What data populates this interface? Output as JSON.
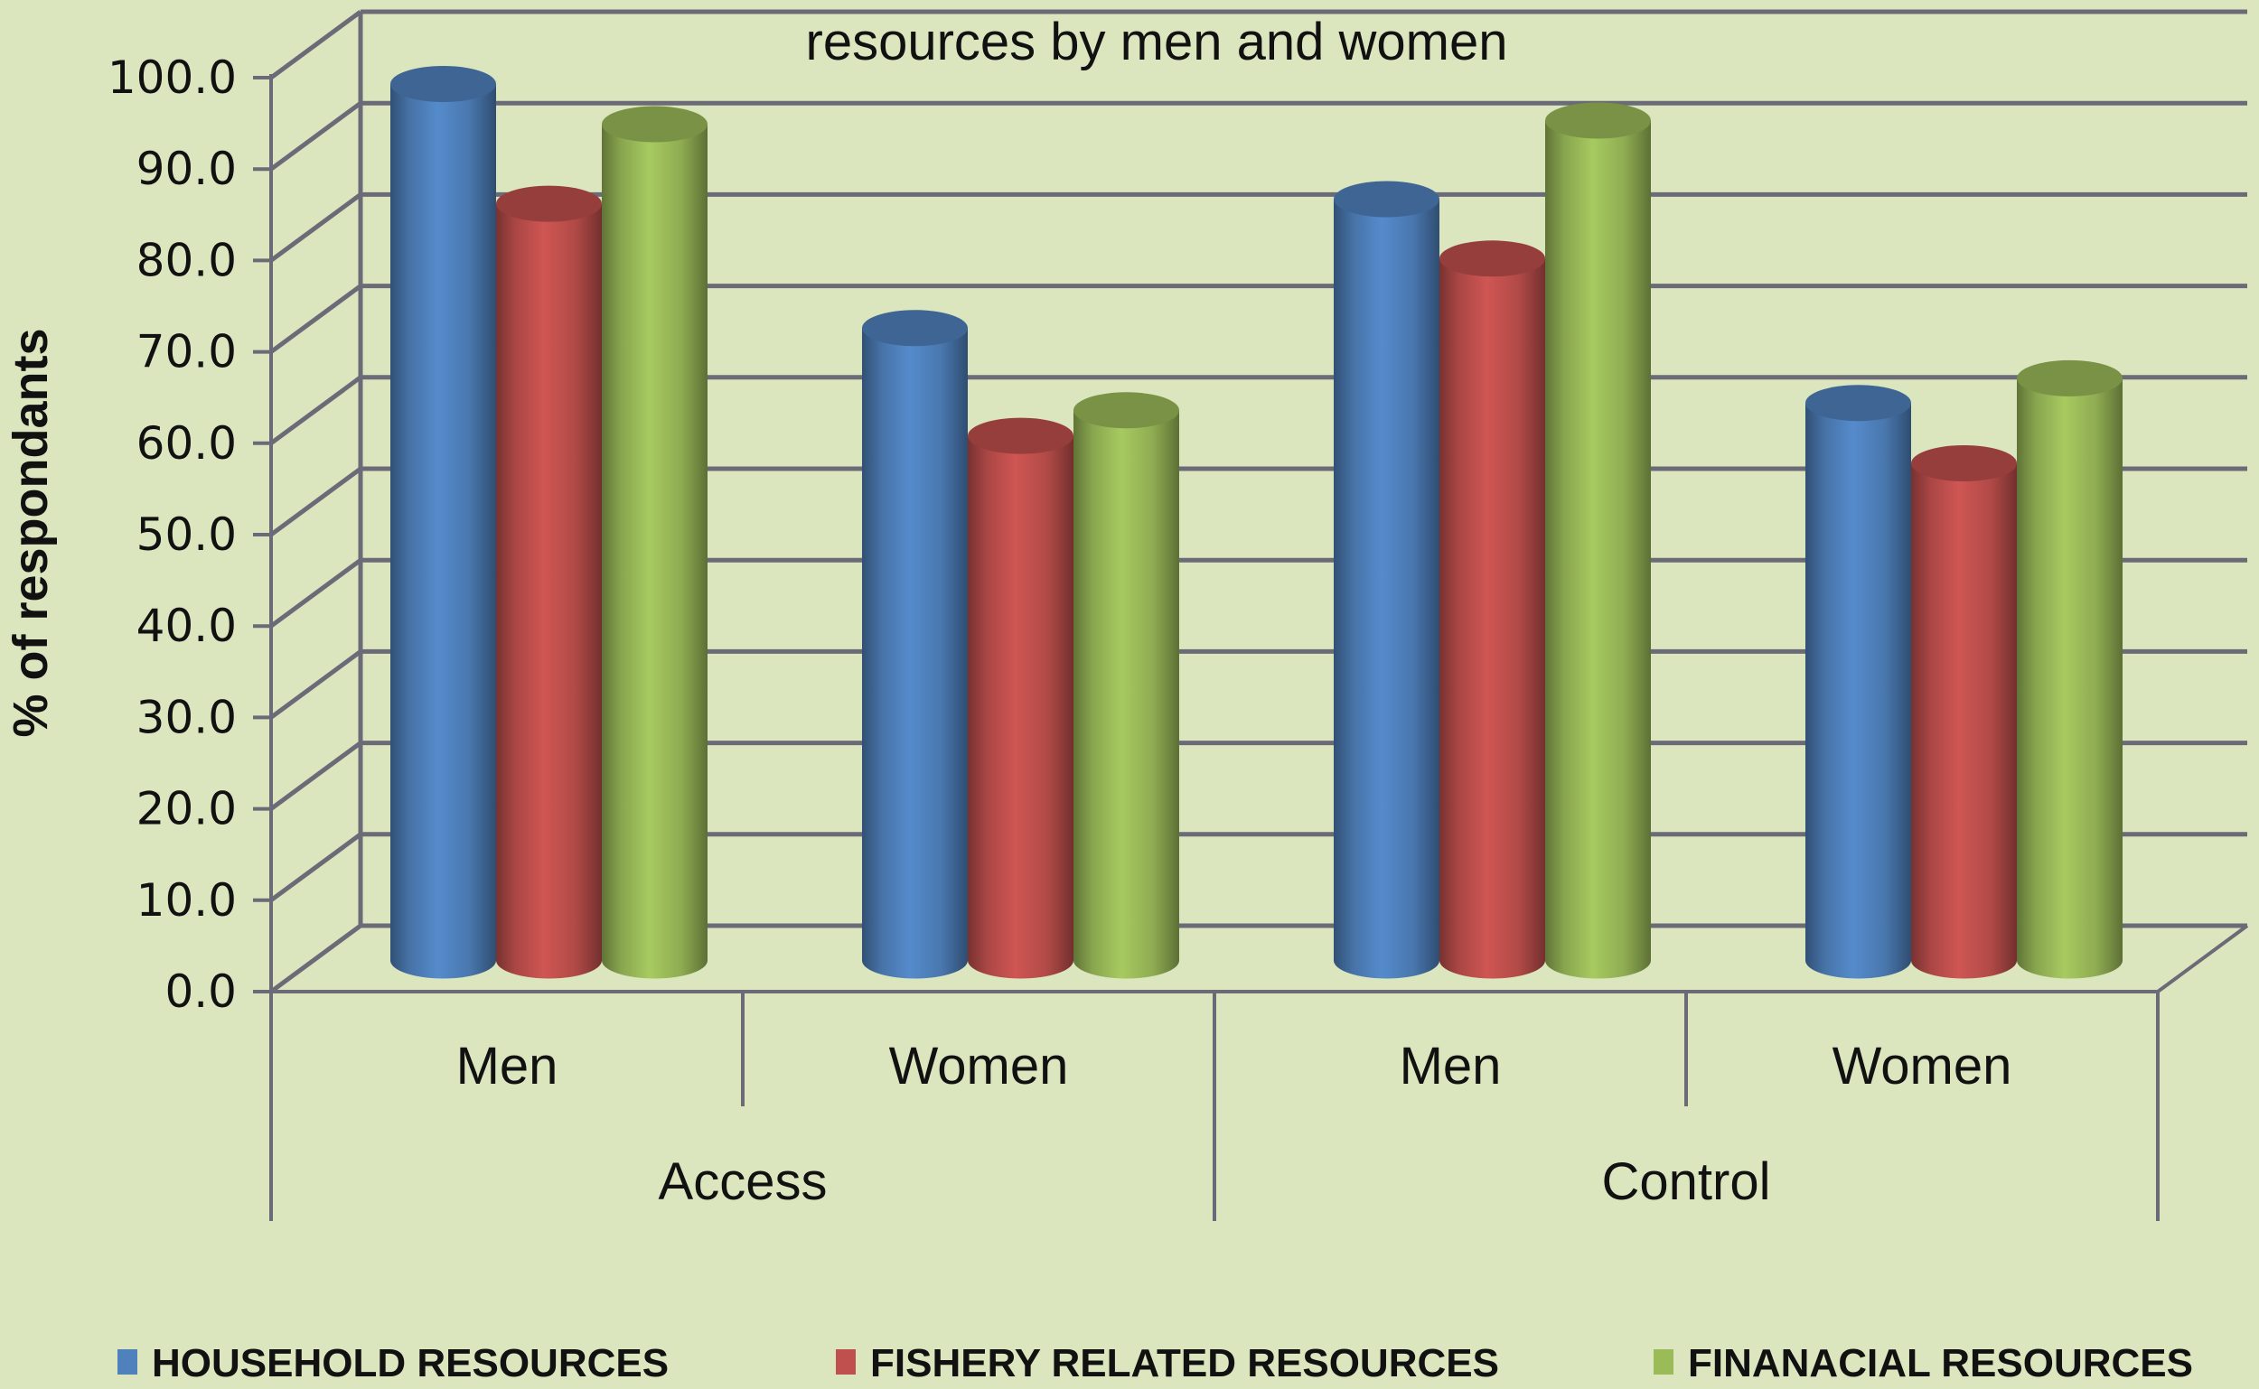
{
  "chart_data": {
    "type": "bar",
    "style": "3d-cylinder-clustered",
    "title": "resources by men and women",
    "title_note": "top of title clipped in image; only last line visible",
    "xlabel": "",
    "ylabel": "% of respondants",
    "ylim": [
      0,
      100
    ],
    "y_ticks": [
      "0.0",
      "10.0",
      "20.0",
      "30.0",
      "40.0",
      "50.0",
      "60.0",
      "70.0",
      "80.0",
      "90.0",
      "100.0"
    ],
    "grid": true,
    "legend_position": "bottom",
    "category_groups": [
      {
        "label": "Access",
        "categories": [
          "Men",
          "Women"
        ]
      },
      {
        "label": "Control",
        "categories": [
          "Men",
          "Women"
        ]
      }
    ],
    "categories": [
      "Access - Men",
      "Access - Women",
      "Control - Men",
      "Control - Women"
    ],
    "series": [
      {
        "name": "HOUSEHOLD RESOURCES",
        "color": "#4f81bd",
        "values": [
          95.7,
          69.0,
          83.1,
          60.8
        ]
      },
      {
        "name": "FISHERY RELATED RESOURCES",
        "color": "#c0504d",
        "values": [
          82.6,
          57.2,
          76.6,
          54.2
        ]
      },
      {
        "name": "FINANACIAL RESOURCES",
        "color": "#9bbb59",
        "values": [
          91.3,
          60.0,
          91.7,
          63.5
        ]
      }
    ]
  },
  "colors": {
    "background": "#dbe5be",
    "gridline": "#6b6b78",
    "text": "#111111"
  }
}
